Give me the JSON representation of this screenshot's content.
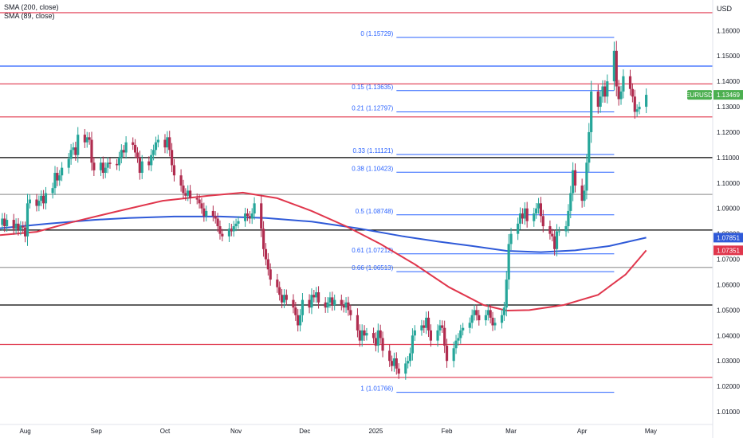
{
  "legend": {
    "sma200": "SMA (200, close)",
    "sma89": "SMA (89, close)"
  },
  "currency": "USD",
  "colors": {
    "up": "#26a69a",
    "down": "#b02c4f",
    "sma200": "#2f5ad8",
    "sma89": "#e0364c",
    "fib": "#2962ff",
    "red_level": "#e0364c",
    "black_level": "#000000",
    "gray_level": "#9e9e9e",
    "price_badge": "#4caf50"
  },
  "chart_data": {
    "type": "candlestick",
    "symbol": "EURUSD",
    "ylim": [
      1.005,
      1.172
    ],
    "y_ticks": [
      "1.16000",
      "1.15000",
      "1.14000",
      "1.13000",
      "1.12000",
      "1.11000",
      "1.10000",
      "1.09000",
      "1.08000",
      "1.07000",
      "1.06000",
      "1.05000",
      "1.04000",
      "1.03000",
      "1.02000",
      "1.01000"
    ],
    "x_labels": [
      {
        "label": "Aug",
        "day": 0
      },
      {
        "label": "Sep",
        "day": 31
      },
      {
        "label": "Oct",
        "day": 61
      },
      {
        "label": "Nov",
        "day": 92
      },
      {
        "label": "Dec",
        "day": 122
      },
      {
        "label": "2025",
        "day": 153
      },
      {
        "label": "Feb",
        "day": 184
      },
      {
        "label": "Mar",
        "day": 212
      },
      {
        "label": "Apr",
        "day": 243
      },
      {
        "label": "May",
        "day": 273
      }
    ],
    "x_range_days": [
      -11,
      300
    ],
    "candles": [
      {
        "day": -10,
        "close": 1.086
      },
      {
        "day": -9,
        "close": 1.083
      },
      {
        "day": -8,
        "close": 1.0855
      },
      {
        "day": -5,
        "close": 1.082
      },
      {
        "day": -4,
        "close": 1.084
      },
      {
        "day": -3,
        "close": 1.0815
      },
      {
        "day": -2,
        "close": 1.083
      },
      {
        "day": -1,
        "close": 1.0825
      },
      {
        "day": 0,
        "close": 1.079
      },
      {
        "day": 1,
        "close": 1.092
      },
      {
        "day": 2,
        "close": 1.0935
      },
      {
        "day": 5,
        "close": 1.091
      },
      {
        "day": 6,
        "close": 1.093
      },
      {
        "day": 7,
        "close": 1.095
      },
      {
        "day": 8,
        "close": 1.092
      },
      {
        "day": 9,
        "close": 1.096
      },
      {
        "day": 12,
        "close": 1.098
      },
      {
        "day": 13,
        "close": 1.104
      },
      {
        "day": 14,
        "close": 1.101
      },
      {
        "day": 15,
        "close": 1.103
      },
      {
        "day": 16,
        "close": 1.106
      },
      {
        "day": 19,
        "close": 1.1095
      },
      {
        "day": 20,
        "close": 1.113
      },
      {
        "day": 21,
        "close": 1.114
      },
      {
        "day": 22,
        "close": 1.111
      },
      {
        "day": 23,
        "close": 1.119
      },
      {
        "day": 26,
        "close": 1.116
      },
      {
        "day": 27,
        "close": 1.118
      },
      {
        "day": 28,
        "close": 1.117
      },
      {
        "day": 29,
        "close": 1.108
      },
      {
        "day": 30,
        "close": 1.105
      },
      {
        "day": 33,
        "close": 1.108
      },
      {
        "day": 34,
        "close": 1.104
      },
      {
        "day": 35,
        "close": 1.106
      },
      {
        "day": 36,
        "close": 1.108
      },
      {
        "day": 37,
        "close": 1.1075
      },
      {
        "day": 40,
        "close": 1.107
      },
      {
        "day": 41,
        "close": 1.11
      },
      {
        "day": 42,
        "close": 1.113
      },
      {
        "day": 43,
        "close": 1.112
      },
      {
        "day": 44,
        "close": 1.116
      },
      {
        "day": 47,
        "close": 1.115
      },
      {
        "day": 48,
        "close": 1.112
      },
      {
        "day": 49,
        "close": 1.11
      },
      {
        "day": 50,
        "close": 1.104
      },
      {
        "day": 51,
        "close": 1.1085
      },
      {
        "day": 54,
        "close": 1.107
      },
      {
        "day": 55,
        "close": 1.111
      },
      {
        "day": 56,
        "close": 1.113
      },
      {
        "day": 57,
        "close": 1.116
      },
      {
        "day": 58,
        "close": 1.117
      },
      {
        "day": 61,
        "close": 1.114
      },
      {
        "day": 62,
        "close": 1.118
      },
      {
        "day": 63,
        "close": 1.113
      },
      {
        "day": 64,
        "close": 1.107
      },
      {
        "day": 65,
        "close": 1.103
      },
      {
        "day": 68,
        "close": 1.099
      },
      {
        "day": 69,
        "close": 1.096
      },
      {
        "day": 70,
        "close": 1.095
      },
      {
        "day": 71,
        "close": 1.097
      },
      {
        "day": 72,
        "close": 1.094
      },
      {
        "day": 75,
        "close": 1.0935
      },
      {
        "day": 76,
        "close": 1.092
      },
      {
        "day": 77,
        "close": 1.09
      },
      {
        "day": 78,
        "close": 1.087
      },
      {
        "day": 79,
        "close": 1.089
      },
      {
        "day": 82,
        "close": 1.087
      },
      {
        "day": 83,
        "close": 1.086
      },
      {
        "day": 84,
        "close": 1.083
      },
      {
        "day": 85,
        "close": 1.08
      },
      {
        "day": 86,
        "close": 1.079
      },
      {
        "day": 89,
        "close": 1.082
      },
      {
        "day": 90,
        "close": 1.081
      },
      {
        "day": 91,
        "close": 1.083
      },
      {
        "day": 92,
        "close": 1.084
      },
      {
        "day": 93,
        "close": 1.085
      },
      {
        "day": 96,
        "close": 1.088
      },
      {
        "day": 97,
        "close": 1.087
      },
      {
        "day": 98,
        "close": 1.086
      },
      {
        "day": 99,
        "close": 1.088
      },
      {
        "day": 100,
        "close": 1.092
      },
      {
        "day": 103,
        "close": 1.082
      },
      {
        "day": 104,
        "close": 1.074
      },
      {
        "day": 105,
        "close": 1.07
      },
      {
        "day": 106,
        "close": 1.066
      },
      {
        "day": 107,
        "close": 1.062
      },
      {
        "day": 110,
        "close": 1.059
      },
      {
        "day": 111,
        "close": 1.056
      },
      {
        "day": 112,
        "close": 1.053
      },
      {
        "day": 113,
        "close": 1.056
      },
      {
        "day": 114,
        "close": 1.054
      },
      {
        "day": 117,
        "close": 1.051
      },
      {
        "day": 118,
        "close": 1.048
      },
      {
        "day": 119,
        "close": 1.044
      },
      {
        "day": 120,
        "close": 1.048
      },
      {
        "day": 121,
        "close": 1.054
      },
      {
        "day": 124,
        "close": 1.051
      },
      {
        "day": 125,
        "close": 1.056
      },
      {
        "day": 126,
        "close": 1.055
      },
      {
        "day": 127,
        "close": 1.057
      },
      {
        "day": 128,
        "close": 1.053
      },
      {
        "day": 131,
        "close": 1.051
      },
      {
        "day": 132,
        "close": 1.053
      },
      {
        "day": 133,
        "close": 1.055
      },
      {
        "day": 134,
        "close": 1.052
      },
      {
        "day": 135,
        "close": 1.054
      },
      {
        "day": 138,
        "close": 1.052
      },
      {
        "day": 139,
        "close": 1.051
      },
      {
        "day": 140,
        "close": 1.053
      },
      {
        "day": 141,
        "close": 1.05
      },
      {
        "day": 142,
        "close": 1.048
      },
      {
        "day": 145,
        "close": 1.042
      },
      {
        "day": 146,
        "close": 1.038
      },
      {
        "day": 147,
        "close": 1.042
      },
      {
        "day": 148,
        "close": 1.04
      },
      {
        "day": 149,
        "close": 1.041
      },
      {
        "day": 152,
        "close": 1.039
      },
      {
        "day": 153,
        "close": 1.036
      },
      {
        "day": 154,
        "close": 1.042
      },
      {
        "day": 155,
        "close": 1.039
      },
      {
        "day": 156,
        "close": 1.034
      },
      {
        "day": 159,
        "close": 1.03
      },
      {
        "day": 160,
        "close": 1.028
      },
      {
        "day": 161,
        "close": 1.031
      },
      {
        "day": 162,
        "close": 1.027
      },
      {
        "day": 163,
        "close": 1.025
      },
      {
        "day": 166,
        "close": 1.029
      },
      {
        "day": 167,
        "close": 1.03
      },
      {
        "day": 168,
        "close": 1.033
      },
      {
        "day": 169,
        "close": 1.04
      },
      {
        "day": 170,
        "close": 1.042
      },
      {
        "day": 173,
        "close": 1.044
      },
      {
        "day": 174,
        "close": 1.043
      },
      {
        "day": 175,
        "close": 1.047
      },
      {
        "day": 176,
        "close": 1.042
      },
      {
        "day": 177,
        "close": 1.038
      },
      {
        "day": 180,
        "close": 1.042
      },
      {
        "day": 181,
        "close": 1.044
      },
      {
        "day": 182,
        "close": 1.043
      },
      {
        "day": 183,
        "close": 1.036
      },
      {
        "day": 184,
        "close": 1.03
      },
      {
        "day": 187,
        "close": 1.035
      },
      {
        "day": 188,
        "close": 1.038
      },
      {
        "day": 189,
        "close": 1.039
      },
      {
        "day": 190,
        "close": 1.042
      },
      {
        "day": 191,
        "close": 1.043
      },
      {
        "day": 194,
        "close": 1.045
      },
      {
        "day": 195,
        "close": 1.048
      },
      {
        "day": 196,
        "close": 1.05
      },
      {
        "day": 197,
        "close": 1.048
      },
      {
        "day": 198,
        "close": 1.046
      },
      {
        "day": 201,
        "close": 1.048
      },
      {
        "day": 202,
        "close": 1.05
      },
      {
        "day": 203,
        "close": 1.047
      },
      {
        "day": 204,
        "close": 1.044
      },
      {
        "day": 205,
        "close": 1.045
      },
      {
        "day": 208,
        "close": 1.048
      },
      {
        "day": 209,
        "close": 1.051
      },
      {
        "day": 210,
        "close": 1.062
      },
      {
        "day": 211,
        "close": 1.076
      },
      {
        "day": 212,
        "close": 1.08
      },
      {
        "day": 215,
        "close": 1.084
      },
      {
        "day": 216,
        "close": 1.088
      },
      {
        "day": 217,
        "close": 1.086
      },
      {
        "day": 218,
        "close": 1.09
      },
      {
        "day": 219,
        "close": 1.085
      },
      {
        "day": 222,
        "close": 1.088
      },
      {
        "day": 223,
        "close": 1.09
      },
      {
        "day": 224,
        "close": 1.092
      },
      {
        "day": 225,
        "close": 1.087
      },
      {
        "day": 226,
        "close": 1.083
      },
      {
        "day": 229,
        "close": 1.08
      },
      {
        "day": 230,
        "close": 1.079
      },
      {
        "day": 231,
        "close": 1.074
      },
      {
        "day": 232,
        "close": 1.081
      },
      {
        "day": 233,
        "close": 1.081
      },
      {
        "day": 236,
        "close": 1.083
      },
      {
        "day": 237,
        "close": 1.089
      },
      {
        "day": 238,
        "close": 1.096
      },
      {
        "day": 239,
        "close": 1.105
      },
      {
        "day": 240,
        "close": 1.099
      },
      {
        "day": 243,
        "close": 1.093
      },
      {
        "day": 244,
        "close": 1.097
      },
      {
        "day": 245,
        "close": 1.108
      },
      {
        "day": 246,
        "close": 1.12
      },
      {
        "day": 247,
        "close": 1.136
      },
      {
        "day": 250,
        "close": 1.13
      },
      {
        "day": 251,
        "close": 1.134
      },
      {
        "day": 252,
        "close": 1.138
      },
      {
        "day": 253,
        "close": 1.134
      },
      {
        "day": 254,
        "close": 1.14
      },
      {
        "day": 257,
        "close": 1.152
      },
      {
        "day": 258,
        "close": 1.138
      },
      {
        "day": 259,
        "close": 1.133
      },
      {
        "day": 260,
        "close": 1.136
      },
      {
        "day": 261,
        "close": 1.142
      },
      {
        "day": 264,
        "close": 1.137
      },
      {
        "day": 265,
        "close": 1.134
      },
      {
        "day": 266,
        "close": 1.128
      },
      {
        "day": 267,
        "close": 1.129
      },
      {
        "day": 268,
        "close": 1.13
      },
      {
        "day": 271,
        "close": 1.1347
      }
    ],
    "open_seed": 1.0835,
    "series": [
      {
        "name": "SMA (200, close)",
        "color": "#2f5ad8",
        "points": [
          [
            -11,
            1.0822
          ],
          [
            10,
            1.084
          ],
          [
            30,
            1.0855
          ],
          [
            45,
            1.0862
          ],
          [
            65,
            1.0868
          ],
          [
            85,
            1.0868
          ],
          [
            105,
            1.0862
          ],
          [
            125,
            1.0848
          ],
          [
            145,
            1.0822
          ],
          [
            165,
            1.079
          ],
          [
            180,
            1.077
          ],
          [
            195,
            1.0752
          ],
          [
            210,
            1.0733
          ],
          [
            225,
            1.0728
          ],
          [
            240,
            1.0735
          ],
          [
            255,
            1.0752
          ],
          [
            271,
            1.0785
          ]
        ]
      },
      {
        "name": "SMA (89, close)",
        "color": "#e0364c",
        "points": [
          [
            -11,
            1.0795
          ],
          [
            5,
            1.0808
          ],
          [
            20,
            1.0845
          ],
          [
            40,
            1.0888
          ],
          [
            60,
            1.093
          ],
          [
            80,
            1.095
          ],
          [
            95,
            1.0962
          ],
          [
            110,
            1.094
          ],
          [
            125,
            1.089
          ],
          [
            140,
            1.083
          ],
          [
            155,
            1.076
          ],
          [
            170,
            1.068
          ],
          [
            185,
            1.059
          ],
          [
            200,
            1.052
          ],
          [
            210,
            1.0498
          ],
          [
            220,
            1.05
          ],
          [
            235,
            1.052
          ],
          [
            250,
            1.056
          ],
          [
            262,
            1.064
          ],
          [
            271,
            1.0735
          ]
        ]
      }
    ],
    "horizontal_levels": [
      {
        "price": 1.167,
        "color": "#e0364c"
      },
      {
        "price": 1.146,
        "color": "#2962ff"
      },
      {
        "price": 1.139,
        "color": "#e0364c"
      },
      {
        "price": 1.126,
        "color": "#e0364c"
      },
      {
        "price": 1.11,
        "color": "#000000"
      },
      {
        "price": 1.0955,
        "color": "#9e9e9e"
      },
      {
        "price": 1.0815,
        "color": "#000000"
      },
      {
        "price": 1.0668,
        "color": "#9e9e9e"
      },
      {
        "price": 1.052,
        "color": "#000000"
      },
      {
        "price": 1.0365,
        "color": "#e0364c"
      },
      {
        "price": 1.0235,
        "color": "#e0364c"
      }
    ],
    "fibonacci": {
      "start_day": 162,
      "end_day": 257,
      "levels": [
        {
          "label": "0 (1.15729)",
          "price": 1.15729
        },
        {
          "label": "0.15 (1.13635)",
          "price": 1.13635
        },
        {
          "label": "0.21 (1.12797)",
          "price": 1.12797
        },
        {
          "label": "0.33 (1.11121)",
          "price": 1.11121
        },
        {
          "label": "0.38 (1.10423)",
          "price": 1.10423
        },
        {
          "label": "0.5 (1.08748)",
          "price": 1.08748
        },
        {
          "label": "0.61 (1.07212)",
          "price": 1.07212
        },
        {
          "label": "0.66 (1.06513)",
          "price": 1.06513
        },
        {
          "label": "1 (1.01766)",
          "price": 1.01766
        }
      ]
    },
    "price_labels": [
      {
        "text": "EURUSD",
        "value": "1.13469",
        "price": 1.13469,
        "color": "#4caf50"
      },
      {
        "text": "",
        "value": "1.07851",
        "price": 1.07851,
        "color": "#2f5ad8"
      },
      {
        "text": "",
        "value": "1.07351",
        "price": 1.07351,
        "color": "#e0364c"
      }
    ]
  }
}
